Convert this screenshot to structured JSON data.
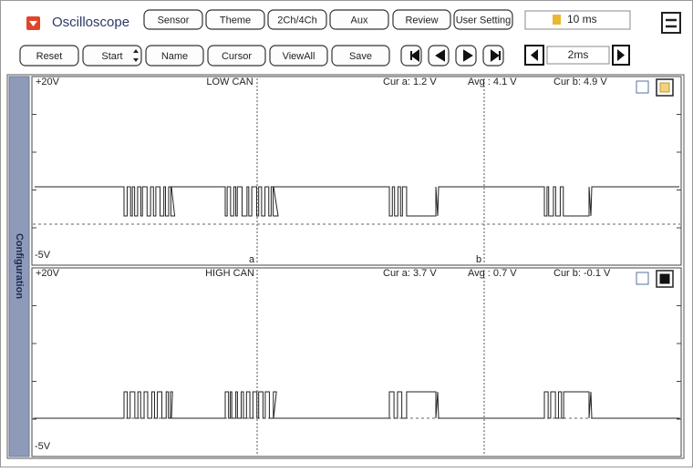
{
  "toolbar": {
    "title": "Oscilloscope",
    "buttons": [
      "Sensor",
      "Theme",
      "2Ch/4Ch",
      "Aux",
      "Review",
      "User Setting"
    ],
    "timebase": "10 ms"
  },
  "controls": {
    "buttons": [
      "Reset",
      "Start",
      "Name",
      "Cursor",
      "ViewAll",
      "Save"
    ],
    "scale": "2ms"
  },
  "sidebar": "Configuration",
  "channels": [
    {
      "top": "+20V",
      "name": "LOW CAN",
      "cur_a": "Cur a: 1.2 V",
      "avg": "Avg  : 4.1 V",
      "cur_b": "Cur b: 4.9 V",
      "bottom": "-5V"
    },
    {
      "top": "+20V",
      "name": "HIGH CAN",
      "cur_a": "Cur a: 3.7 V",
      "avg": "Avg  : 0.7 V",
      "cur_b": "Cur b: -0.1 V",
      "bottom": "-5V"
    }
  ],
  "cursors": [
    "a",
    "b"
  ]
}
